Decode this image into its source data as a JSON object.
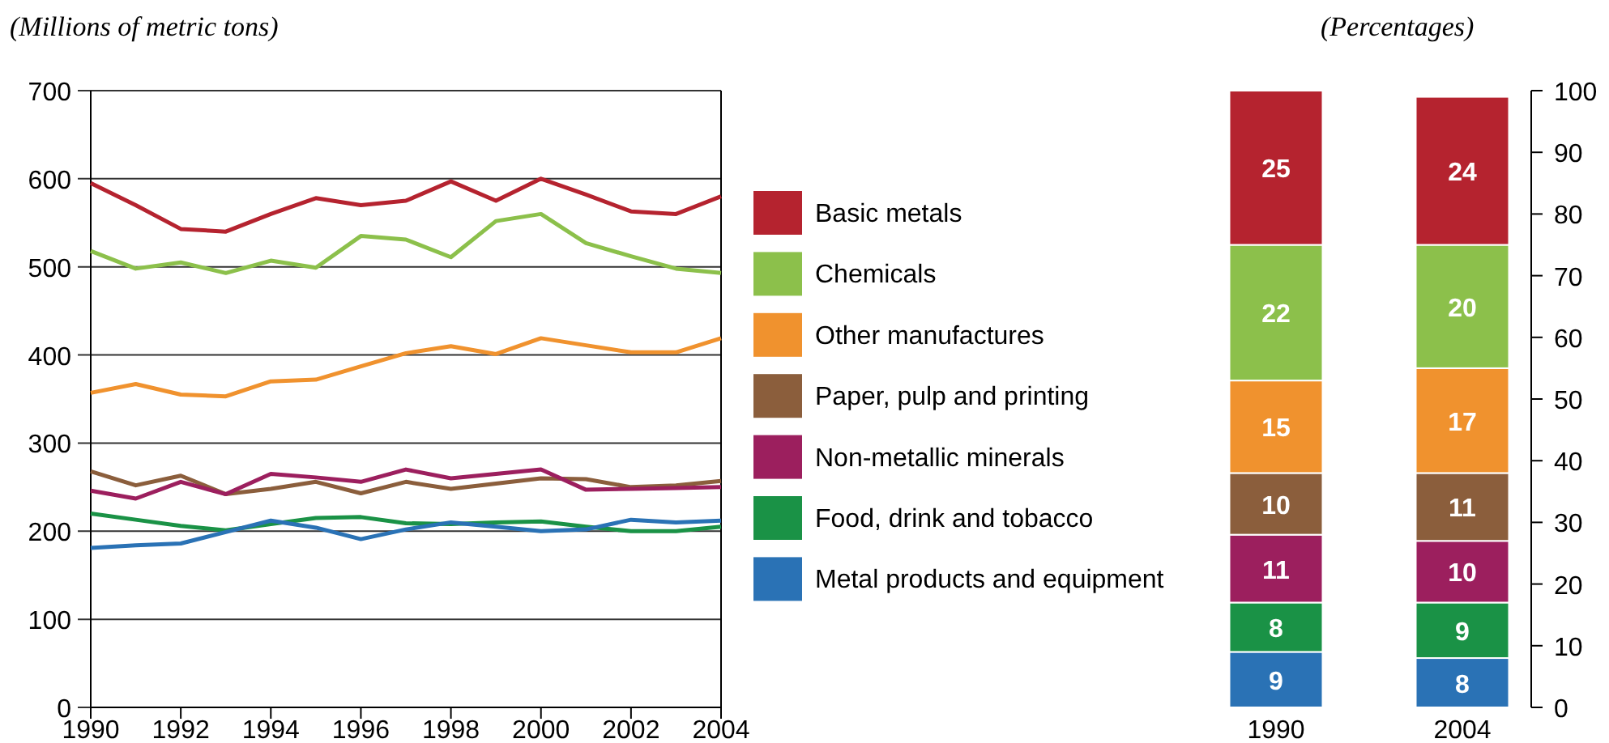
{
  "chart_data": [
    {
      "type": "line",
      "ylabel": "(Millions of metric tons)",
      "x": [
        1990,
        1991,
        1992,
        1993,
        1994,
        1995,
        1996,
        1997,
        1998,
        1999,
        2000,
        2001,
        2002,
        2003,
        2004
      ],
      "xlim": [
        1990,
        2004
      ],
      "xticks": [
        1990,
        1992,
        1994,
        1996,
        1998,
        2000,
        2002,
        2004
      ],
      "ylim": [
        0,
        700
      ],
      "yticks": [
        0,
        100,
        200,
        300,
        400,
        500,
        600,
        700
      ],
      "grid": "y",
      "legend": "right",
      "line_style": "solid",
      "marker": "none",
      "series": [
        {
          "name": "Basic metals",
          "color": "#b5232f",
          "values": [
            595,
            570,
            543,
            540,
            560,
            578,
            570,
            575,
            597,
            575,
            600,
            582,
            563,
            560,
            580
          ]
        },
        {
          "name": "Chemicals",
          "color": "#8cc04b",
          "values": [
            518,
            498,
            505,
            493,
            507,
            499,
            535,
            531,
            511,
            552,
            560,
            527,
            512,
            498,
            493
          ]
        },
        {
          "name": "Other manufactures",
          "color": "#f0922e",
          "values": [
            357,
            367,
            355,
            353,
            370,
            372,
            387,
            402,
            410,
            401,
            419,
            411,
            403,
            403,
            419
          ]
        },
        {
          "name": "Paper, pulp and printing",
          "color": "#8b5e3c",
          "values": [
            268,
            252,
            263,
            242,
            248,
            256,
            243,
            256,
            248,
            254,
            260,
            259,
            250,
            252,
            257
          ]
        },
        {
          "name": "Non-metallic minerals",
          "color": "#9c1f5e",
          "values": [
            246,
            237,
            256,
            242,
            265,
            261,
            256,
            270,
            260,
            265,
            270,
            247,
            248,
            249,
            250
          ]
        },
        {
          "name": "Food, drink and tobacco",
          "color": "#1a9246",
          "values": [
            220,
            213,
            206,
            201,
            208,
            215,
            216,
            209,
            208,
            210,
            211,
            205,
            200,
            200,
            205
          ]
        },
        {
          "name": "Metal products and equipment",
          "color": "#2a72b5",
          "values": [
            181,
            184,
            186,
            199,
            212,
            204,
            191,
            202,
            210,
            205,
            200,
            202,
            213,
            210,
            212
          ]
        }
      ]
    },
    {
      "type": "bar",
      "ylabel": "(Percentages)",
      "categories": [
        "1990",
        "2004"
      ],
      "stacked": true,
      "data_labels": true,
      "ylim": [
        0,
        100
      ],
      "yticks": [
        0,
        10,
        20,
        30,
        40,
        50,
        60,
        70,
        80,
        90,
        100
      ],
      "grid": false,
      "series": [
        {
          "color": "#2a72b5",
          "values": [
            9,
            8
          ]
        },
        {
          "color": "#1a9246",
          "values": [
            8,
            9
          ]
        },
        {
          "color": "#9c1f5e",
          "values": [
            11,
            10
          ]
        },
        {
          "color": "#8b5e3c",
          "values": [
            10,
            11
          ]
        },
        {
          "color": "#f0922e",
          "values": [
            15,
            17
          ]
        },
        {
          "color": "#8cc04b",
          "values": [
            22,
            20
          ]
        },
        {
          "color": "#b5232f",
          "values": [
            25,
            24
          ]
        }
      ]
    }
  ]
}
